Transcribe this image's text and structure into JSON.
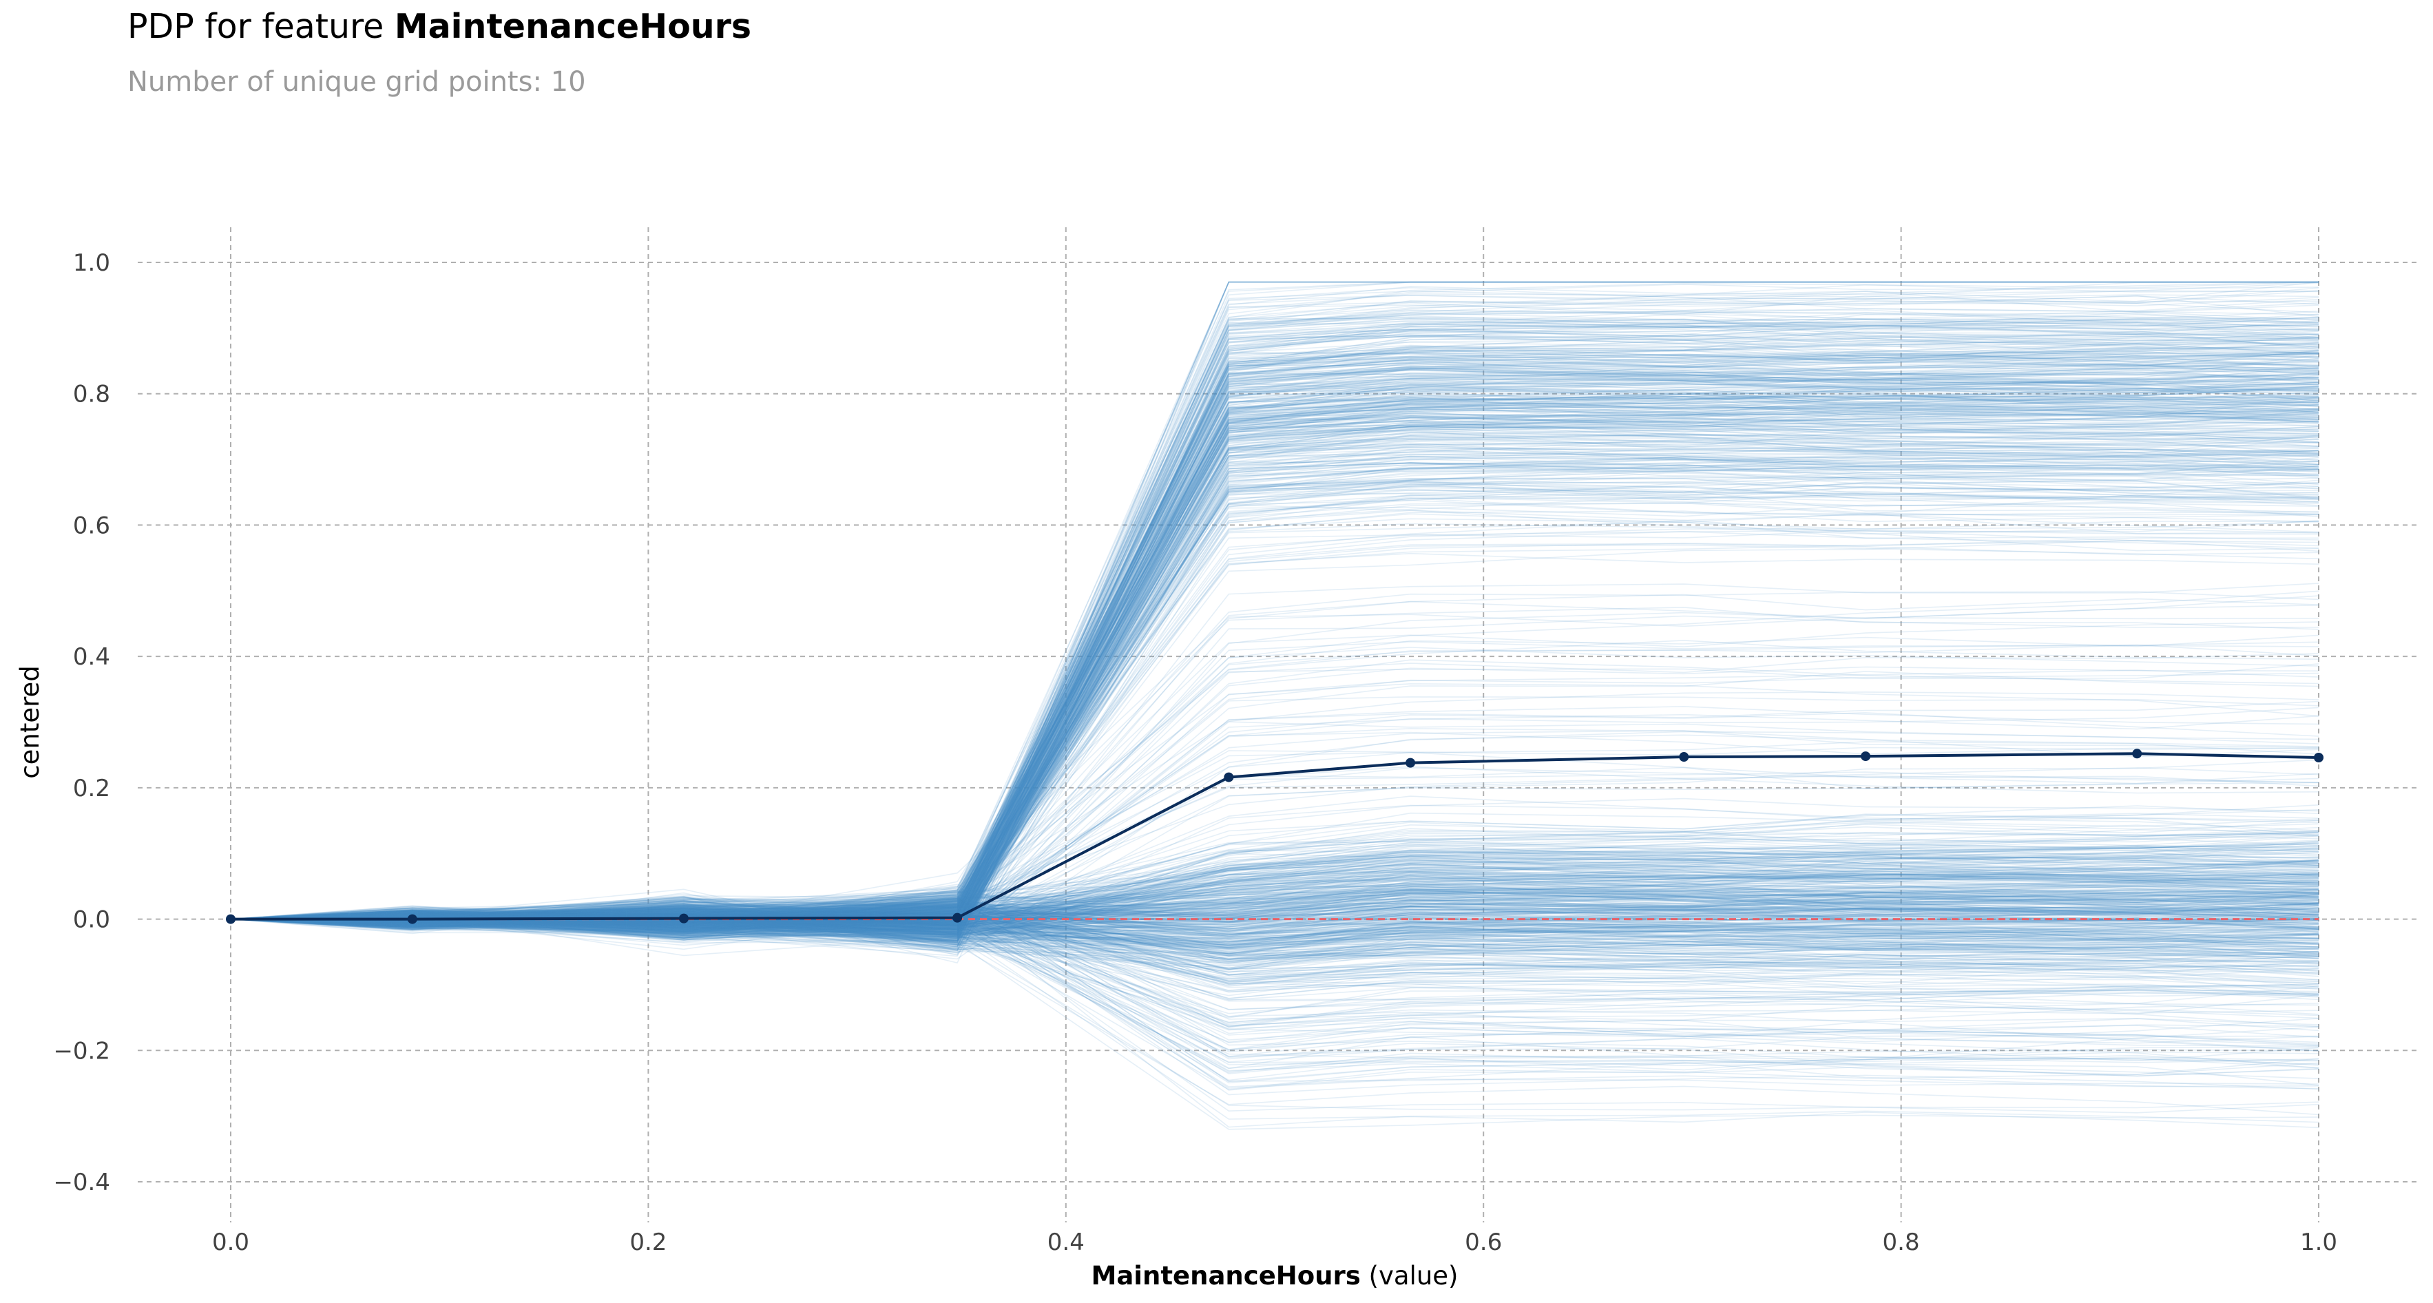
{
  "title": {
    "prefix": "PDP for feature",
    "feature": "MaintenanceHours"
  },
  "subtitle": "Number of unique grid points: 10",
  "colors": {
    "ice": "#4a8fc4",
    "pdp": "#0b2d5b",
    "zero": "#e8626a",
    "grid": "#b0b0b0",
    "tick": "#424242"
  },
  "chart_data": {
    "type": "line",
    "title": "PDP for feature MaintenanceHours",
    "subtitle": "Number of unique grid points: 10",
    "xlabel": "MaintenanceHours",
    "xlabel_suffix": "(value)",
    "ylabel": "centered",
    "xlim": [
      -0.1,
      1.1
    ],
    "ylim": [
      -0.42,
      1.05
    ],
    "xticks": [
      0.0,
      0.2,
      0.4,
      0.6,
      0.8,
      1.0
    ],
    "xtick_labels": [
      "0.0",
      "0.2",
      "0.4",
      "0.6",
      "0.8",
      "1.0"
    ],
    "yticks": [
      1.0,
      0.8,
      0.6,
      0.4,
      0.2,
      0.0,
      -0.2,
      -0.4
    ],
    "ytick_labels": [
      "1.0",
      "0.8",
      "0.6",
      "0.4",
      "0.2",
      "0.0",
      "−0.2",
      "−0.4"
    ],
    "grid": true,
    "grid_points": [
      0.0,
      0.087,
      0.217,
      0.348,
      0.478,
      0.565,
      0.696,
      0.783,
      0.913,
      1.0
    ],
    "series": [
      {
        "values": [
          0.0,
          0.0,
          0.001,
          0.002,
          0.216,
          0.238,
          0.247,
          0.248,
          0.252,
          0.246
        ]
      }
    ],
    "reference_line": {
      "y": 0.0,
      "style": "dashed"
    },
    "ice_groups": [
      {
        "count": 430,
        "y_at_step": 0.78,
        "spread": 0.16,
        "pre": 0.022
      },
      {
        "count": 440,
        "y_at_step": 0.0,
        "spread": 0.1,
        "pre": 0.02
      },
      {
        "count": 70,
        "y_at_step": 0.35,
        "spread": 0.3,
        "pre": 0.03
      },
      {
        "count": 60,
        "y_at_step": -0.2,
        "spread": 0.09,
        "pre": 0.025
      }
    ]
  }
}
